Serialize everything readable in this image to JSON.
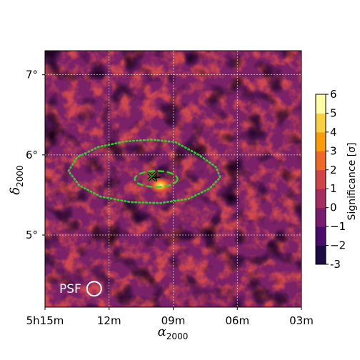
{
  "chart_data": {
    "type": "heatmap",
    "title": "",
    "colormap": "inferno",
    "xlabel": "α",
    "xlabel_sub": "2000",
    "ylabel": "δ",
    "ylabel_sub": "2000",
    "x_ticks": [
      {
        "label": "5h15m",
        "ra_min": 315
      },
      {
        "label": "12m",
        "ra_min": 312
      },
      {
        "label": "09m",
        "ra_min": 309
      },
      {
        "label": "06m",
        "ra_min": 306
      },
      {
        "label": "03m",
        "ra_min": 303
      }
    ],
    "y_ticks": [
      {
        "label": "5°",
        "dec": 5
      },
      {
        "label": "6°",
        "dec": 6
      },
      {
        "label": "7°",
        "dec": 7
      }
    ],
    "xlim_ra_min": [
      315.0,
      303.0
    ],
    "ylim_dec": [
      4.1,
      7.3
    ],
    "grid": true,
    "colorbar": {
      "label": "Significance [σ]",
      "min": -3,
      "max": 6,
      "ticks": [
        "-3",
        "−2",
        "−1",
        "0",
        "1",
        "2",
        "3",
        "4",
        "5",
        "6"
      ],
      "tick_values": [
        -3,
        -2,
        -1,
        0,
        1,
        2,
        3,
        4,
        5,
        6
      ],
      "colors": [
        "#000004",
        "#1b0c41",
        "#4a0c6b",
        "#781c6d",
        "#a52c60",
        "#cf4446",
        "#ed6925",
        "#fb9b06",
        "#f7d13d",
        "#fcffa4"
      ]
    },
    "hotspot": {
      "ra_min": 309.6,
      "dec": 5.62,
      "peak_sigma": 5.5
    },
    "outer_contour": {
      "ra_min": [
        313.9,
        313.5,
        312.5,
        311.2,
        310.0,
        308.9,
        307.8,
        307.0,
        306.8,
        307.3,
        308.3,
        309.6,
        311.0,
        312.4,
        313.4,
        313.9
      ],
      "dec": [
        5.8,
        5.97,
        6.1,
        6.17,
        6.19,
        6.16,
        6.0,
        5.85,
        5.72,
        5.58,
        5.45,
        5.4,
        5.41,
        5.48,
        5.62,
        5.8
      ]
    },
    "inner_contour": {
      "center_ra_min": 309.8,
      "center_dec": 5.7,
      "half_width_ra_min": 1.0,
      "half_height_dec": 0.1
    },
    "markers": [
      {
        "kind": "x",
        "ra_min": 310.0,
        "dec": 5.73,
        "color": "#2aa02b"
      },
      {
        "kind": "plus",
        "ra_min": 309.8,
        "dec": 5.72,
        "color": "#000000"
      }
    ],
    "psf": {
      "label": "PSF",
      "ra_min": 312.7,
      "dec": 4.33
    }
  }
}
